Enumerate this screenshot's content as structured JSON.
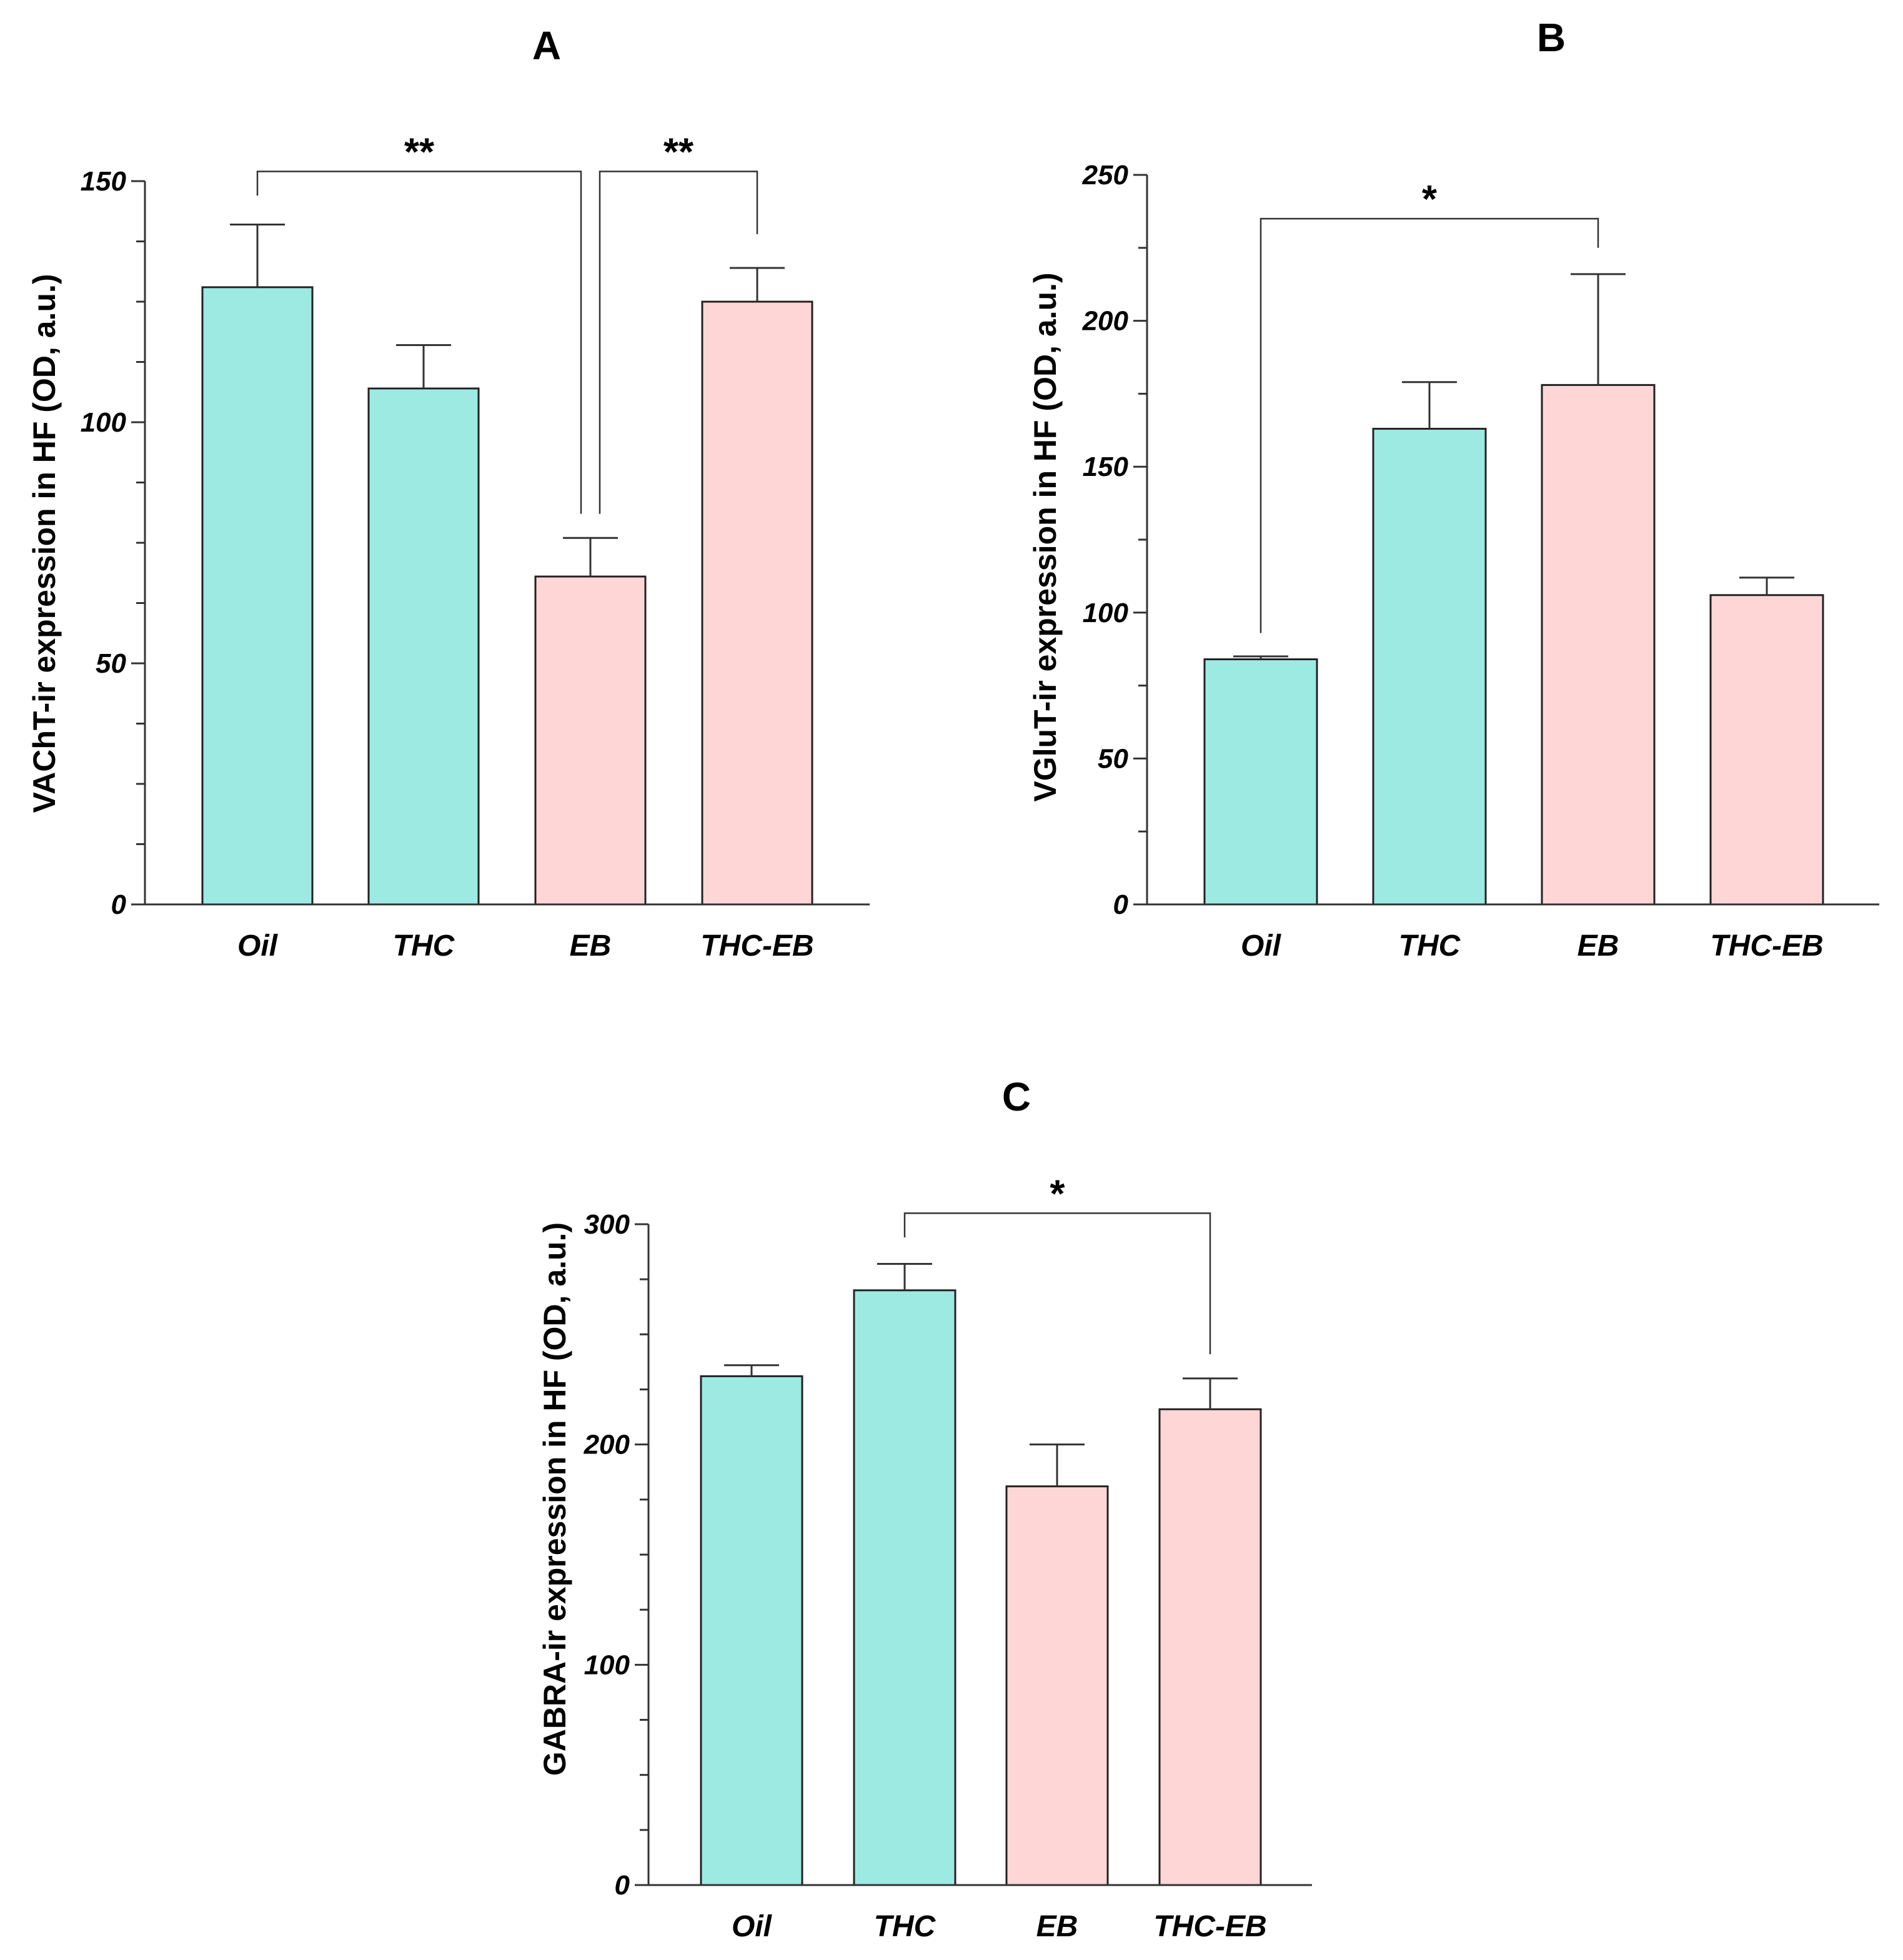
{
  "colors": {
    "oil_thc": "#9deae3",
    "eb_thcEb": "#ffd6d6",
    "axis": "#333333",
    "bar_edge": "#222222"
  },
  "chart_data": [
    {
      "id": "A",
      "type": "bar",
      "title": "A",
      "xlabel": "",
      "ylabel": "VAChT-ir expression in HF (OD, a.u.)",
      "categories": [
        "Oil",
        "THC",
        "EB",
        "THC-EB"
      ],
      "values": [
        128,
        107,
        68,
        125
      ],
      "errors": [
        13,
        9,
        8,
        7
      ],
      "bar_colors": [
        "#9deae3",
        "#9deae3",
        "#ffd6d6",
        "#ffd6d6"
      ],
      "ylim": [
        0,
        150
      ],
      "yticks": [
        0,
        50,
        100,
        150
      ],
      "minor_step": 12.5,
      "grid": false,
      "significance": [
        {
          "from": 0,
          "to": 2,
          "label": "**",
          "y": 152,
          "left_end": 147,
          "right_end": 81
        },
        {
          "from": 2,
          "to": 3,
          "label": "**",
          "y": 152,
          "left_end": 81,
          "right_end": 139
        }
      ]
    },
    {
      "id": "B",
      "type": "bar",
      "title": "B",
      "xlabel": "",
      "ylabel": "VGluT-ir expression in HF (OD, a.u.)",
      "categories": [
        "Oil",
        "THC",
        "EB",
        "THC-EB"
      ],
      "values": [
        84,
        163,
        178,
        106
      ],
      "errors": [
        1,
        16,
        38,
        6
      ],
      "bar_colors": [
        "#9deae3",
        "#9deae3",
        "#ffd6d6",
        "#ffd6d6"
      ],
      "ylim": [
        0,
        250
      ],
      "yticks": [
        0,
        50,
        100,
        150,
        200,
        250
      ],
      "minor_step": 25,
      "grid": false,
      "significance": [
        {
          "from": 0,
          "to": 2,
          "label": "*",
          "y": 235,
          "left_end": 93,
          "right_end": 225
        }
      ]
    },
    {
      "id": "C",
      "type": "bar",
      "title": "C",
      "xlabel": "",
      "ylabel": "GABRA-ir expression in HF (OD, a.u.)",
      "categories": [
        "Oil",
        "THC",
        "EB",
        "THC-EB"
      ],
      "values": [
        231,
        270,
        181,
        216
      ],
      "errors": [
        5,
        12,
        19,
        14
      ],
      "bar_colors": [
        "#9deae3",
        "#9deae3",
        "#ffd6d6",
        "#ffd6d6"
      ],
      "ylim": [
        0,
        300
      ],
      "yticks": [
        0,
        100,
        200,
        300
      ],
      "minor_step": 25,
      "grid": false,
      "significance": [
        {
          "from": 1,
          "to": 3,
          "label": "*",
          "y": 305,
          "left_end": 294,
          "right_end": 241
        }
      ]
    }
  ]
}
